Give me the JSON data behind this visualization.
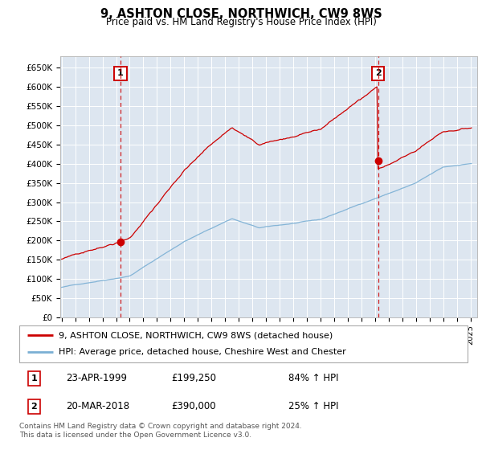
{
  "title": "9, ASHTON CLOSE, NORTHWICH, CW9 8WS",
  "subtitle": "Price paid vs. HM Land Registry's House Price Index (HPI)",
  "ylabel_ticks": [
    "£0",
    "£50K",
    "£100K",
    "£150K",
    "£200K",
    "£250K",
    "£300K",
    "£350K",
    "£400K",
    "£450K",
    "£500K",
    "£550K",
    "£600K",
    "£650K"
  ],
  "ytick_values": [
    0,
    50000,
    100000,
    150000,
    200000,
    250000,
    300000,
    350000,
    400000,
    450000,
    500000,
    550000,
    600000,
    650000
  ],
  "ylim": [
    0,
    680000
  ],
  "xlim_start": 1994.9,
  "xlim_end": 2025.5,
  "sale1_date": 1999.31,
  "sale1_price": 199250,
  "sale1_label": "1",
  "sale2_date": 2018.22,
  "sale2_price": 390000,
  "sale2_label": "2",
  "property_color": "#cc0000",
  "hpi_color": "#7aafd4",
  "background_color": "#dde6f0",
  "legend_label_property": "9, ASHTON CLOSE, NORTHWICH, CW9 8WS (detached house)",
  "legend_label_hpi": "HPI: Average price, detached house, Cheshire West and Chester",
  "table_row1": [
    "1",
    "23-APR-1999",
    "£199,250",
    "84% ↑ HPI"
  ],
  "table_row2": [
    "2",
    "20-MAR-2018",
    "£390,000",
    "25% ↑ HPI"
  ],
  "footer": "Contains HM Land Registry data © Crown copyright and database right 2024.\nThis data is licensed under the Open Government Licence v3.0."
}
